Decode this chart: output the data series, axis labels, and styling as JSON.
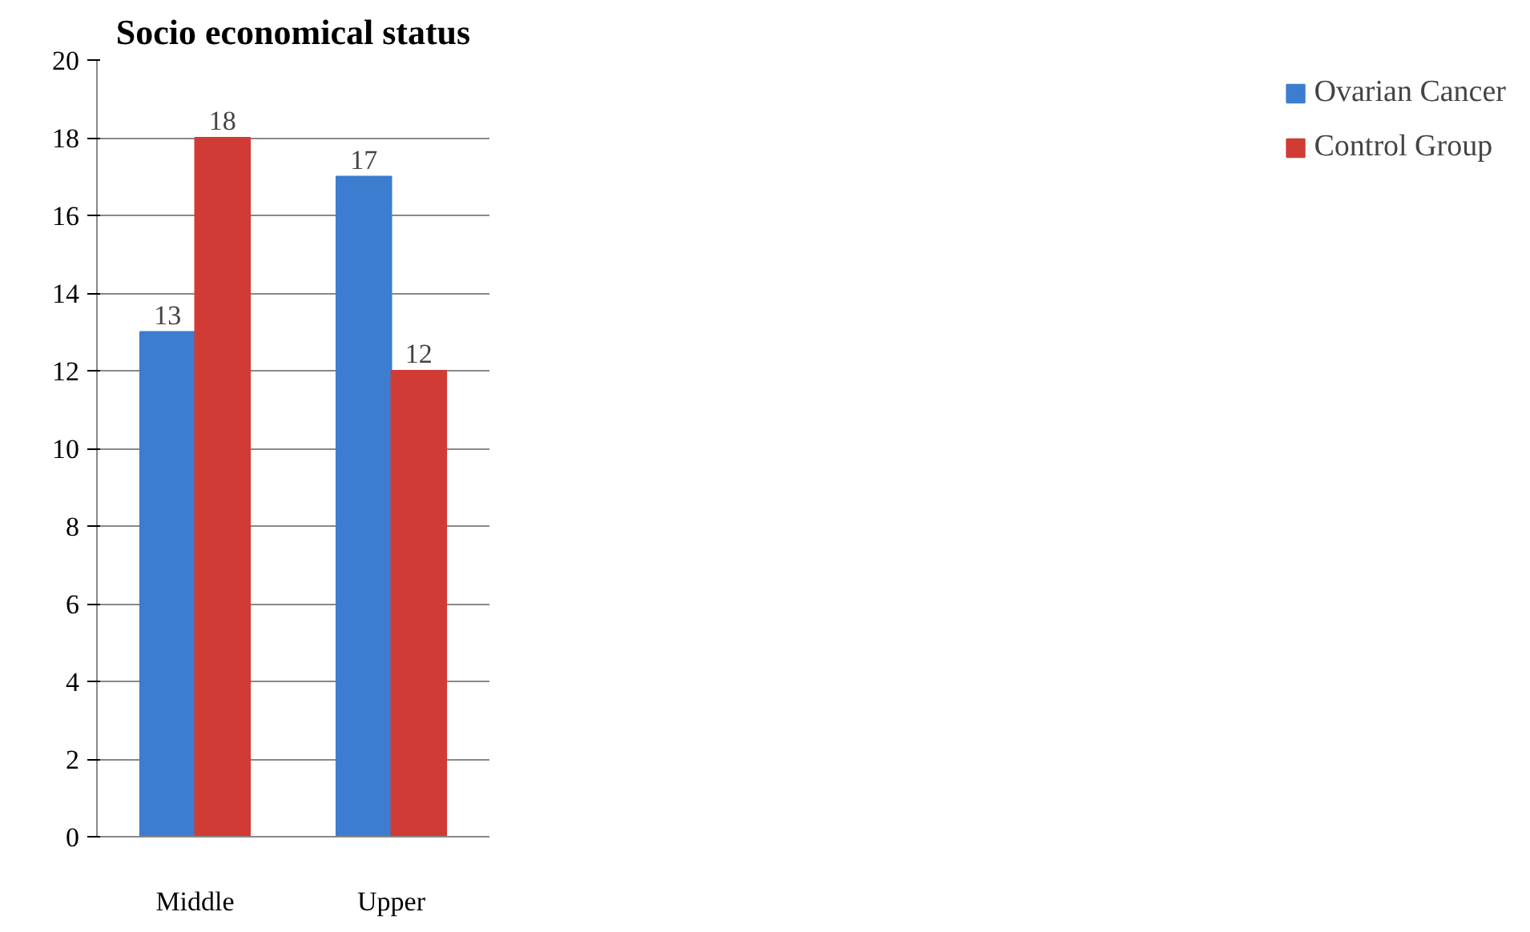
{
  "chart_data": {
    "type": "bar",
    "title": "Socio economical status",
    "categories": [
      "Middle",
      "Upper"
    ],
    "series": [
      {
        "name": "Ovarian Cancer",
        "color": "#3c7dd0",
        "values": [
          13,
          17
        ]
      },
      {
        "name": "Control Group",
        "color": "#d03c35",
        "values": [
          18,
          12
        ]
      }
    ],
    "ylim": [
      0,
      20
    ],
    "yticks": [
      0,
      2,
      4,
      6,
      8,
      10,
      12,
      14,
      16,
      18,
      20
    ],
    "grid": "y",
    "legend": "right",
    "data_labels": true
  }
}
